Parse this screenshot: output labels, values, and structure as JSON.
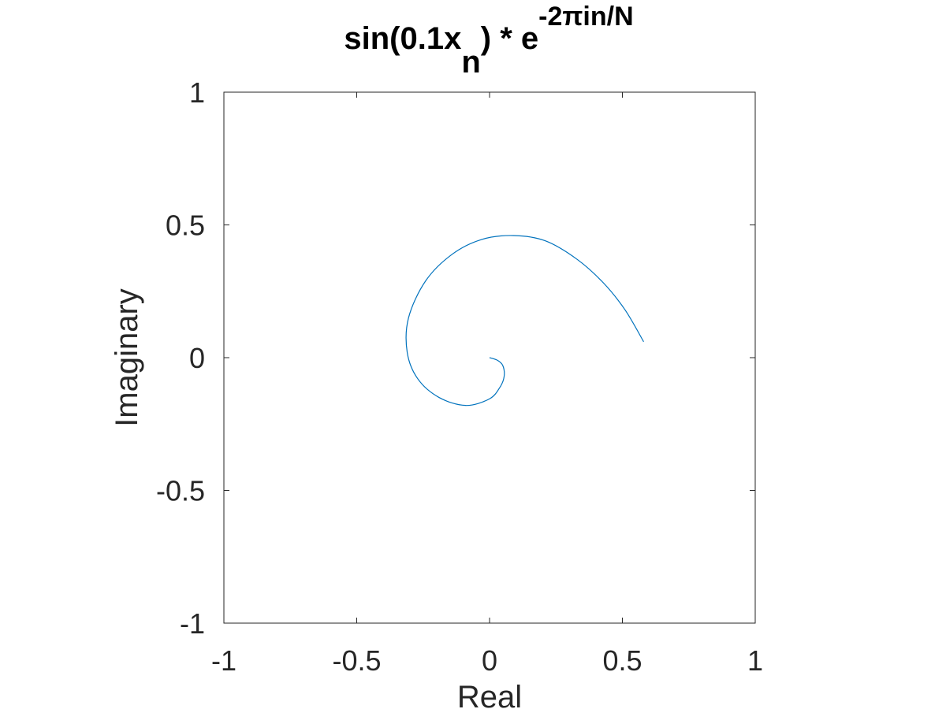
{
  "chart_data": {
    "type": "line",
    "title": {
      "part1": "sin(0.1x",
      "sub": "n",
      "part2": ") * e",
      "sup": "-2πin/N"
    },
    "xlabel": "Real",
    "ylabel": "Imaginary",
    "xlim": [
      -1,
      1
    ],
    "ylim": [
      -1,
      1
    ],
    "xticks": [
      -1,
      -0.5,
      0,
      0.5,
      1
    ],
    "yticks": [
      -1,
      -0.5,
      0,
      0.5,
      1
    ],
    "xtick_labels": [
      "-1",
      "-0.5",
      "0",
      "0.5",
      "1"
    ],
    "ytick_labels": [
      "-1",
      "-0.5",
      "0",
      "0.5",
      "1"
    ],
    "grid": false,
    "box": true,
    "line_color": "#0072bd",
    "series": [
      {
        "points": [
          [
            0.0,
            0.0
          ],
          [
            0.03,
            -0.01
          ],
          [
            0.05,
            -0.03
          ],
          [
            0.055,
            -0.07
          ],
          [
            0.04,
            -0.11
          ],
          [
            0.0,
            -0.155
          ],
          [
            -0.09,
            -0.18
          ],
          [
            -0.19,
            -0.15
          ],
          [
            -0.27,
            -0.08
          ],
          [
            -0.31,
            0.02
          ],
          [
            -0.305,
            0.15
          ],
          [
            -0.24,
            0.29
          ],
          [
            -0.14,
            0.39
          ],
          [
            -0.03,
            0.445
          ],
          [
            0.09,
            0.46
          ],
          [
            0.21,
            0.44
          ],
          [
            0.33,
            0.37
          ],
          [
            0.43,
            0.28
          ],
          [
            0.51,
            0.18
          ],
          [
            0.58,
            0.06
          ]
        ]
      }
    ]
  }
}
